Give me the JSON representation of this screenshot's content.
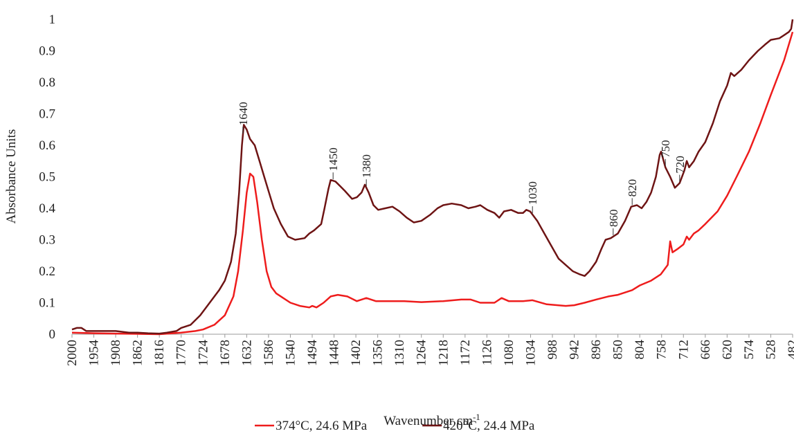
{
  "chart_data": {
    "type": "line",
    "ylabel": "Absorbance Units",
    "xlabel": {
      "text": "Wavenumber cm",
      "superscript": "-1"
    },
    "xlim": [
      2000,
      482
    ],
    "xticks": [
      2000,
      1954,
      1908,
      1862,
      1816,
      1770,
      1724,
      1678,
      1632,
      1586,
      1540,
      1494,
      1448,
      1402,
      1356,
      1310,
      1264,
      1218,
      1172,
      1126,
      1080,
      1034,
      988,
      942,
      896,
      850,
      804,
      758,
      712,
      666,
      620,
      574,
      528,
      482
    ],
    "ylim": [
      0,
      1
    ],
    "yticks": [
      0,
      0.1,
      0.2,
      0.3,
      0.4,
      0.5,
      0.6,
      0.7,
      0.8,
      0.9,
      1
    ],
    "grid": false,
    "legend": "bottom",
    "annotations": [
      {
        "text": "1640",
        "x": 1640
      },
      {
        "text": "1450",
        "x": 1450
      },
      {
        "text": "1380",
        "x": 1380
      },
      {
        "text": "1030",
        "x": 1030
      },
      {
        "text": "860",
        "x": 860
      },
      {
        "text": "820",
        "x": 820
      },
      {
        "text": "750",
        "x": 750
      },
      {
        "text": "720",
        "x": 720
      }
    ],
    "series": [
      {
        "name": "374°C, 24.6 MPa",
        "color": "#ee1c1c",
        "x": [
          2000,
          1954,
          1908,
          1862,
          1816,
          1770,
          1740,
          1724,
          1700,
          1678,
          1660,
          1650,
          1640,
          1632,
          1625,
          1618,
          1610,
          1600,
          1590,
          1580,
          1570,
          1560,
          1540,
          1520,
          1500,
          1494,
          1485,
          1470,
          1455,
          1440,
          1420,
          1400,
          1380,
          1360,
          1330,
          1300,
          1264,
          1218,
          1180,
          1160,
          1140,
          1110,
          1095,
          1080,
          1050,
          1030,
          1000,
          960,
          942,
          920,
          896,
          870,
          850,
          820,
          804,
          780,
          760,
          745,
          740,
          735,
          725,
          712,
          705,
          700,
          690,
          680,
          666,
          640,
          620,
          600,
          574,
          550,
          528,
          500,
          482
        ],
        "values": [
          0.005,
          0.003,
          0.002,
          0.001,
          0,
          0.005,
          0.01,
          0.015,
          0.03,
          0.06,
          0.12,
          0.2,
          0.33,
          0.45,
          0.51,
          0.5,
          0.42,
          0.3,
          0.2,
          0.15,
          0.13,
          0.12,
          0.1,
          0.09,
          0.085,
          0.09,
          0.085,
          0.1,
          0.12,
          0.125,
          0.12,
          0.105,
          0.115,
          0.105,
          0.105,
          0.105,
          0.102,
          0.105,
          0.11,
          0.11,
          0.1,
          0.1,
          0.115,
          0.105,
          0.105,
          0.108,
          0.095,
          0.09,
          0.092,
          0.1,
          0.11,
          0.12,
          0.125,
          0.14,
          0.155,
          0.17,
          0.19,
          0.22,
          0.295,
          0.26,
          0.27,
          0.285,
          0.31,
          0.3,
          0.32,
          0.33,
          0.35,
          0.39,
          0.44,
          0.5,
          0.58,
          0.67,
          0.76,
          0.87,
          0.96
        ]
      },
      {
        "name": "420°C, 24.4 MPa",
        "color": "#6e1414",
        "x": [
          2000,
          1990,
          1980,
          1970,
          1954,
          1930,
          1908,
          1880,
          1862,
          1840,
          1816,
          1800,
          1780,
          1770,
          1750,
          1730,
          1710,
          1690,
          1678,
          1665,
          1655,
          1648,
          1642,
          1638,
          1632,
          1625,
          1615,
          1605,
          1595,
          1585,
          1575,
          1560,
          1545,
          1530,
          1510,
          1500,
          1490,
          1475,
          1468,
          1460,
          1455,
          1445,
          1435,
          1425,
          1410,
          1400,
          1390,
          1383,
          1375,
          1365,
          1355,
          1340,
          1325,
          1310,
          1295,
          1280,
          1264,
          1245,
          1230,
          1218,
          1200,
          1180,
          1165,
          1150,
          1140,
          1125,
          1110,
          1100,
          1090,
          1075,
          1060,
          1050,
          1043,
          1035,
          1020,
          1005,
          990,
          975,
          960,
          945,
          930,
          920,
          910,
          896,
          885,
          876,
          865,
          850,
          835,
          822,
          810,
          800,
          790,
          780,
          770,
          762,
          759,
          750,
          740,
          730,
          720,
          710,
          705,
          700,
          690,
          680,
          666,
          650,
          635,
          620,
          612,
          605,
          590,
          574,
          555,
          540,
          528,
          510,
          500,
          490,
          485,
          482
        ],
        "values": [
          0.015,
          0.02,
          0.02,
          0.01,
          0.01,
          0.01,
          0.01,
          0.005,
          0.005,
          0.003,
          0.002,
          0.005,
          0.01,
          0.02,
          0.03,
          0.06,
          0.1,
          0.14,
          0.17,
          0.23,
          0.32,
          0.45,
          0.6,
          0.665,
          0.65,
          0.62,
          0.6,
          0.55,
          0.5,
          0.45,
          0.4,
          0.35,
          0.31,
          0.3,
          0.305,
          0.32,
          0.33,
          0.35,
          0.4,
          0.46,
          0.49,
          0.485,
          0.47,
          0.455,
          0.43,
          0.435,
          0.45,
          0.475,
          0.45,
          0.41,
          0.395,
          0.4,
          0.405,
          0.39,
          0.37,
          0.355,
          0.36,
          0.38,
          0.4,
          0.41,
          0.415,
          0.41,
          0.4,
          0.405,
          0.41,
          0.395,
          0.385,
          0.37,
          0.39,
          0.395,
          0.385,
          0.385,
          0.395,
          0.39,
          0.36,
          0.32,
          0.28,
          0.24,
          0.22,
          0.2,
          0.19,
          0.185,
          0.2,
          0.23,
          0.27,
          0.3,
          0.305,
          0.32,
          0.36,
          0.405,
          0.41,
          0.4,
          0.42,
          0.45,
          0.5,
          0.57,
          0.58,
          0.53,
          0.5,
          0.465,
          0.48,
          0.52,
          0.55,
          0.53,
          0.55,
          0.58,
          0.61,
          0.67,
          0.74,
          0.79,
          0.83,
          0.82,
          0.84,
          0.87,
          0.9,
          0.92,
          0.935,
          0.94,
          0.95,
          0.96,
          0.97,
          1.0
        ]
      }
    ]
  }
}
